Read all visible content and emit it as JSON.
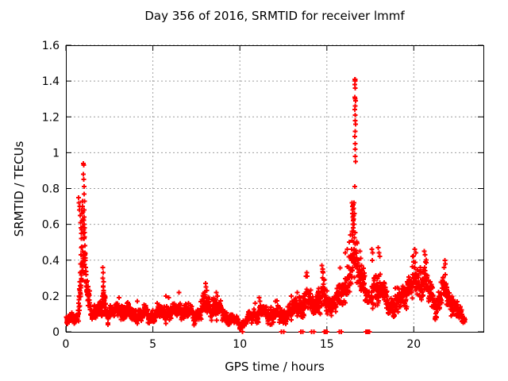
{
  "chart_data": {
    "type": "scatter",
    "title": "Day 356 of 2016, SRMTID for receiver lmmf",
    "xlabel": "GPS time / hours",
    "ylabel": "SRMTID / TECUs",
    "xlim": [
      0,
      24
    ],
    "ylim": [
      0,
      1.6
    ],
    "xticks": [
      0,
      5,
      10,
      15,
      20
    ],
    "xtick_labels": [
      "0",
      "5",
      "10",
      "15",
      "20"
    ],
    "yticks": [
      0,
      0.2,
      0.4,
      0.6,
      0.8,
      1,
      1.2,
      1.4,
      1.6
    ],
    "ytick_labels": [
      "0",
      "0.2",
      "0.4",
      "0.6",
      "0.8",
      "1",
      "1.2",
      "1.4",
      "1.6"
    ],
    "grid": {
      "show": true,
      "color": "#9e9e9e",
      "dash": [
        2,
        3
      ]
    },
    "marker": {
      "shape": "plus",
      "color": "#ff0000",
      "half_size": 3,
      "stroke_width": 1.9
    },
    "series": [
      {
        "name": "SRMTID",
        "color": "#ff0000",
        "x_start": 0.02,
        "x_end": 22.95,
        "points_per_hour": 95,
        "seed": 20161221,
        "sparse_gaps": [
          [
            17.26,
            17.55,
            0.25
          ]
        ],
        "band_knots": [
          [
            0,
            0.055,
            0.03
          ],
          [
            0.4,
            0.07,
            0.04
          ],
          [
            0.7,
            0.1,
            0.055
          ],
          [
            0.9,
            0.3,
            0.2
          ],
          [
            1.05,
            0.43,
            0.25
          ],
          [
            1.2,
            0.23,
            0.14
          ],
          [
            1.5,
            0.11,
            0.05
          ],
          [
            2,
            0.115,
            0.055
          ],
          [
            2.15,
            0.19,
            0.11
          ],
          [
            2.35,
            0.12,
            0.07
          ],
          [
            2.7,
            0.1,
            0.05
          ],
          [
            3,
            0.12,
            0.06
          ],
          [
            3.5,
            0.11,
            0.055
          ],
          [
            4,
            0.09,
            0.045
          ],
          [
            4.5,
            0.1,
            0.05
          ],
          [
            5,
            0.09,
            0.045
          ],
          [
            5.5,
            0.105,
            0.05
          ],
          [
            5.8,
            0.12,
            0.06
          ],
          [
            6.2,
            0.11,
            0.055
          ],
          [
            6.5,
            0.13,
            0.06
          ],
          [
            7,
            0.1,
            0.05
          ],
          [
            7.5,
            0.09,
            0.045
          ],
          [
            8,
            0.16,
            0.085
          ],
          [
            8.3,
            0.14,
            0.07
          ],
          [
            8.7,
            0.13,
            0.065
          ],
          [
            9.2,
            0.09,
            0.045
          ],
          [
            9.6,
            0.06,
            0.03
          ],
          [
            10,
            0.045,
            0.025
          ],
          [
            10.4,
            0.06,
            0.03
          ],
          [
            10.8,
            0.09,
            0.05
          ],
          [
            11.2,
            0.11,
            0.06
          ],
          [
            11.6,
            0.09,
            0.05
          ],
          [
            12,
            0.1,
            0.055
          ],
          [
            12.5,
            0.08,
            0.05
          ],
          [
            12.9,
            0.12,
            0.065
          ],
          [
            13.3,
            0.13,
            0.075
          ],
          [
            13.7,
            0.165,
            0.09
          ],
          [
            13.9,
            0.175,
            0.095
          ],
          [
            14.2,
            0.14,
            0.08
          ],
          [
            14.6,
            0.195,
            0.105
          ],
          [
            14.8,
            0.21,
            0.115
          ],
          [
            15.1,
            0.14,
            0.08
          ],
          [
            15.4,
            0.165,
            0.09
          ],
          [
            15.8,
            0.195,
            0.1
          ],
          [
            16.1,
            0.25,
            0.12
          ],
          [
            16.4,
            0.34,
            0.17
          ],
          [
            16.6,
            0.43,
            0.2
          ],
          [
            16.8,
            0.33,
            0.12
          ],
          [
            17.1,
            0.29,
            0.1
          ],
          [
            17.35,
            0.16,
            0.09
          ],
          [
            17.6,
            0.22,
            0.125
          ],
          [
            17.9,
            0.25,
            0.12
          ],
          [
            18.2,
            0.22,
            0.115
          ],
          [
            18.5,
            0.15,
            0.08
          ],
          [
            18.8,
            0.14,
            0.07
          ],
          [
            19.2,
            0.175,
            0.09
          ],
          [
            19.5,
            0.215,
            0.1
          ],
          [
            19.9,
            0.275,
            0.125
          ],
          [
            20.1,
            0.295,
            0.13
          ],
          [
            20.4,
            0.26,
            0.12
          ],
          [
            20.7,
            0.295,
            0.13
          ],
          [
            21,
            0.18,
            0.1
          ],
          [
            21.3,
            0.14,
            0.08
          ],
          [
            21.6,
            0.215,
            0.115
          ],
          [
            21.8,
            0.255,
            0.12
          ],
          [
            22,
            0.18,
            0.09
          ],
          [
            22.2,
            0.16,
            0.085
          ],
          [
            22.4,
            0.14,
            0.08
          ],
          [
            22.6,
            0.09,
            0.05
          ],
          [
            22.95,
            0.07,
            0.04
          ]
        ],
        "peak_points": [
          [
            0.73,
            0.75
          ],
          [
            0.75,
            0.72
          ],
          [
            0.78,
            0.68
          ],
          [
            0.8,
            0.7
          ],
          [
            0.82,
            0.65
          ],
          [
            0.84,
            0.61
          ],
          [
            0.86,
            0.58
          ],
          [
            0.88,
            0.55
          ],
          [
            0.9,
            0.52
          ],
          [
            0.92,
            0.57
          ],
          [
            0.93,
            0.62
          ],
          [
            0.94,
            0.66
          ],
          [
            0.95,
            0.7
          ],
          [
            0.96,
            0.73
          ],
          [
            0.97,
            0.67
          ],
          [
            0.98,
            0.63
          ],
          [
            0.99,
            0.59
          ],
          [
            1.0,
            0.94
          ],
          [
            1.02,
            0.93
          ],
          [
            1.01,
            0.88
          ],
          [
            1.03,
            0.85
          ],
          [
            1.04,
            0.81
          ],
          [
            1.05,
            0.77
          ],
          [
            1.0,
            0.55
          ],
          [
            1.01,
            0.52
          ],
          [
            1.03,
            0.57
          ],
          [
            1.04,
            0.6
          ],
          [
            1.05,
            0.64
          ],
          [
            1.06,
            0.68
          ],
          [
            1.07,
            0.73
          ],
          [
            1.07,
            0.58
          ],
          [
            1.08,
            0.53
          ],
          [
            1.09,
            0.48
          ],
          [
            1.1,
            0.44
          ],
          [
            1.12,
            0.4
          ],
          [
            1.14,
            0.36
          ],
          [
            1.16,
            0.32
          ],
          [
            1.18,
            0.28
          ],
          [
            1.21,
            0.25
          ],
          [
            1.24,
            0.21
          ],
          [
            1.28,
            0.18
          ],
          [
            0.88,
            0.47
          ],
          [
            0.86,
            0.43
          ],
          [
            0.84,
            0.38
          ],
          [
            0.82,
            0.33
          ],
          [
            0.8,
            0.28
          ],
          [
            0.78,
            0.24
          ],
          [
            0.76,
            0.2
          ],
          [
            0.74,
            0.16
          ],
          [
            0.95,
            0.45
          ],
          [
            0.97,
            0.41
          ],
          [
            0.99,
            0.37
          ],
          [
            0.91,
            0.68
          ],
          [
            2.08,
            0.16
          ],
          [
            2.1,
            0.2
          ],
          [
            2.12,
            0.36
          ],
          [
            2.13,
            0.3
          ],
          [
            2.14,
            0.25
          ],
          [
            2.15,
            0.33
          ],
          [
            2.16,
            0.28
          ],
          [
            2.17,
            0.22
          ],
          [
            2.18,
            0.18
          ],
          [
            2.2,
            0.15
          ],
          [
            3.05,
            0.19
          ],
          [
            4.1,
            0.17
          ],
          [
            5.75,
            0.2
          ],
          [
            5.92,
            0.19
          ],
          [
            6.5,
            0.22
          ],
          [
            7.05,
            0.16
          ],
          [
            8.02,
            0.27
          ],
          [
            8.06,
            0.25
          ],
          [
            8.1,
            0.23
          ],
          [
            8.65,
            0.22
          ],
          [
            8.72,
            0.2
          ],
          [
            11.1,
            0.19
          ],
          [
            11.15,
            0.17
          ],
          [
            12.05,
            0.17
          ],
          [
            12.95,
            0.2
          ],
          [
            13.3,
            0.22
          ],
          [
            13.84,
            0.33
          ],
          [
            13.88,
            0.31
          ],
          [
            14.72,
            0.37
          ],
          [
            14.75,
            0.35
          ],
          [
            14.78,
            0.33
          ],
          [
            16.05,
            0.44
          ],
          [
            16.18,
            0.46
          ],
          [
            16.3,
            0.5
          ],
          [
            16.35,
            0.54
          ],
          [
            16.6,
            1.41
          ],
          [
            16.63,
            1.41
          ],
          [
            16.62,
            1.4
          ],
          [
            16.6,
            1.38
          ],
          [
            16.64,
            1.36
          ],
          [
            16.61,
            1.31
          ],
          [
            16.63,
            1.3
          ],
          [
            16.65,
            1.29
          ],
          [
            16.62,
            1.26
          ],
          [
            16.6,
            1.24
          ],
          [
            16.64,
            1.21
          ],
          [
            16.62,
            1.18
          ],
          [
            16.66,
            1.16
          ],
          [
            16.63,
            1.12
          ],
          [
            16.61,
            1.09
          ],
          [
            16.64,
            1.05
          ],
          [
            16.62,
            1.02
          ],
          [
            16.63,
            0.98
          ],
          [
            16.65,
            0.95
          ],
          [
            16.6,
            0.81
          ],
          [
            16.45,
            0.72
          ],
          [
            16.48,
            0.7
          ],
          [
            16.5,
            0.68
          ],
          [
            16.52,
            0.71
          ],
          [
            16.54,
            0.69
          ],
          [
            16.47,
            0.66
          ],
          [
            16.49,
            0.64
          ],
          [
            16.51,
            0.62
          ],
          [
            16.53,
            0.65
          ],
          [
            16.55,
            0.63
          ],
          [
            16.5,
            0.6
          ],
          [
            16.52,
            0.58
          ],
          [
            16.46,
            0.56
          ],
          [
            16.48,
            0.54
          ],
          [
            16.54,
            0.56
          ],
          [
            16.56,
            0.6
          ],
          [
            16.58,
            0.66
          ],
          [
            16.57,
            0.72
          ],
          [
            16.44,
            0.51
          ],
          [
            16.42,
            0.46
          ],
          [
            16.4,
            0.41
          ],
          [
            16.55,
            0.5
          ],
          [
            16.57,
            0.46
          ],
          [
            16.59,
            0.43
          ],
          [
            16.9,
            0.45
          ],
          [
            16.95,
            0.41
          ],
          [
            17.0,
            0.37
          ],
          [
            17.05,
            0.34
          ],
          [
            17.1,
            0.3
          ],
          [
            17.15,
            0.27
          ],
          [
            17.2,
            0.24
          ],
          [
            17.58,
            0.46
          ],
          [
            17.63,
            0.44
          ],
          [
            17.61,
            0.4
          ],
          [
            17.95,
            0.47
          ],
          [
            18.0,
            0.44
          ],
          [
            18.05,
            0.42
          ],
          [
            19.95,
            0.42
          ],
          [
            20.05,
            0.46
          ],
          [
            20.12,
            0.44
          ],
          [
            20.6,
            0.45
          ],
          [
            20.65,
            0.43
          ],
          [
            21.75,
            0.36
          ],
          [
            21.78,
            0.4
          ],
          [
            21.82,
            0.38
          ]
        ],
        "zero_points_x": [
          10.15,
          12.38,
          12.52,
          13.5,
          13.62,
          14.12,
          14.25,
          14.85,
          14.93,
          15.02,
          15.72,
          15.84,
          17.25,
          17.32,
          17.38,
          17.45
        ]
      }
    ]
  },
  "frame": {
    "background": "#ffffff",
    "border_color": "#000000",
    "text_color": "#000000"
  }
}
